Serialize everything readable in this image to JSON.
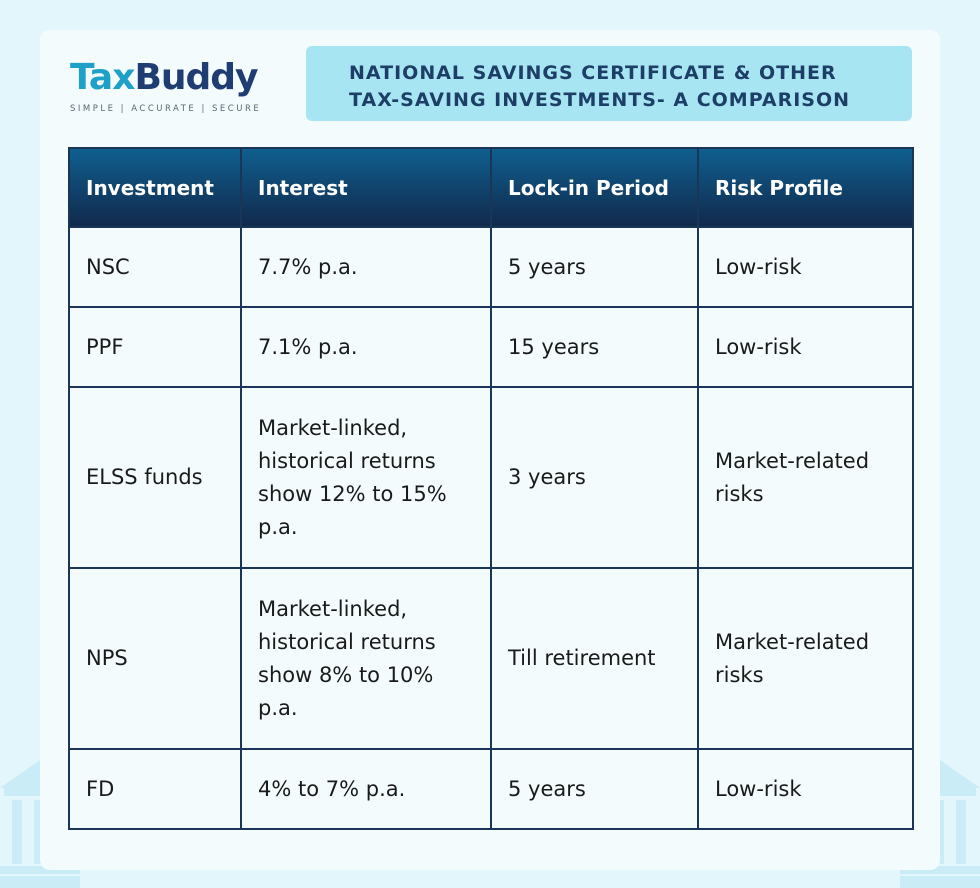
{
  "brand": {
    "name_part1": "Tax",
    "name_part2": "Buddy",
    "tagline": "SIMPLE | ACCURATE | SECURE"
  },
  "title": {
    "line1": "NATIONAL SAVINGS CERTIFICATE & OTHER",
    "line2": "TAX-SAVING INVESTMENTS- A COMPARISON"
  },
  "table": {
    "headers": [
      "Investment",
      "Interest",
      "Lock-in Period",
      "Risk Profile"
    ],
    "rows": [
      {
        "investment": "NSC",
        "interest": "7.7% p.a.",
        "lock_in": "5 years",
        "risk": "Low-risk"
      },
      {
        "investment": "PPF",
        "interest": "7.1% p.a.",
        "lock_in": "15 years",
        "risk": "Low-risk"
      },
      {
        "investment": "ELSS funds",
        "interest": "Market-linked, historical returns show 12% to 15% p.a.",
        "lock_in": "3 years",
        "risk": "Market-related risks"
      },
      {
        "investment": "NPS",
        "interest": "Market-linked, historical returns show 8% to 10% p.a.",
        "lock_in": "Till retirement",
        "risk": "Market-related risks"
      },
      {
        "investment": "FD",
        "interest": "4% to 7% p.a.",
        "lock_in": "5 years",
        "risk": "Low-risk"
      }
    ]
  },
  "colors": {
    "page_bg": "#e3f6fb",
    "title_bg": "#a8e5f2",
    "title_text": "#1d3e66",
    "header_top": "#0f5f8f",
    "header_bottom": "#11294c",
    "brand_tax": "#1fa0c9",
    "brand_buddy": "#1f3c73"
  }
}
